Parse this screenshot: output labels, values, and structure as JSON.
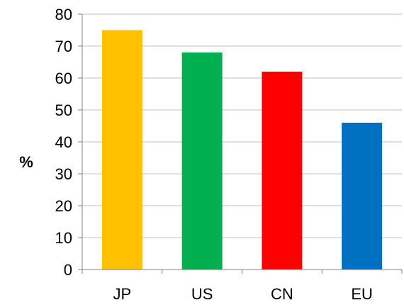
{
  "chart_data": {
    "type": "bar",
    "categories": [
      "JP",
      "US",
      "CN",
      "EU"
    ],
    "values": [
      75,
      68,
      62,
      46
    ],
    "colors": [
      "#FFC000",
      "#00B050",
      "#FF0000",
      "#0070C0"
    ],
    "title": "",
    "xlabel": "",
    "ylabel": "%",
    "ylim": [
      0,
      80
    ],
    "yticks": [
      "0",
      "10",
      "20",
      "30",
      "40",
      "50",
      "60",
      "70",
      "80"
    ],
    "grid": true,
    "legend": "none"
  }
}
